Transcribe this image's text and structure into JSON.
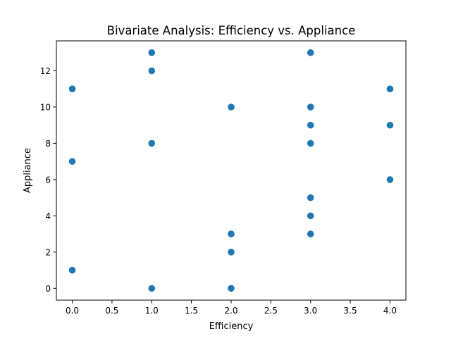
{
  "chart_data": {
    "type": "scatter",
    "title": "Bivariate Analysis: Efficiency vs. Appliance",
    "xlabel": "Efficiency",
    "ylabel": "Appliance",
    "xlim": [
      -0.2,
      4.2
    ],
    "ylim": [
      -0.65,
      13.65
    ],
    "x_ticks": [
      0.0,
      0.5,
      1.0,
      1.5,
      2.0,
      2.5,
      3.0,
      3.5,
      4.0
    ],
    "x_tick_labels": [
      "0.0",
      "0.5",
      "1.0",
      "1.5",
      "2.0",
      "2.5",
      "3.0",
      "3.5",
      "4.0"
    ],
    "y_ticks": [
      0,
      2,
      4,
      6,
      8,
      10,
      12
    ],
    "y_tick_labels": [
      "0",
      "2",
      "4",
      "6",
      "8",
      "10",
      "12"
    ],
    "grid": false,
    "legend": "none",
    "marker_color": "#1f77b4",
    "series": [
      {
        "points": [
          {
            "x": 0,
            "y": 1
          },
          {
            "x": 0,
            "y": 7
          },
          {
            "x": 0,
            "y": 11
          },
          {
            "x": 1,
            "y": 0
          },
          {
            "x": 1,
            "y": 8
          },
          {
            "x": 1,
            "y": 12
          },
          {
            "x": 1,
            "y": 13
          },
          {
            "x": 2,
            "y": 0
          },
          {
            "x": 2,
            "y": 2
          },
          {
            "x": 2,
            "y": 3
          },
          {
            "x": 2,
            "y": 10
          },
          {
            "x": 3,
            "y": 3
          },
          {
            "x": 3,
            "y": 4
          },
          {
            "x": 3,
            "y": 5
          },
          {
            "x": 3,
            "y": 8
          },
          {
            "x": 3,
            "y": 9
          },
          {
            "x": 3,
            "y": 10
          },
          {
            "x": 3,
            "y": 13
          },
          {
            "x": 4,
            "y": 6
          },
          {
            "x": 4,
            "y": 9
          },
          {
            "x": 4,
            "y": 11
          }
        ]
      }
    ]
  }
}
